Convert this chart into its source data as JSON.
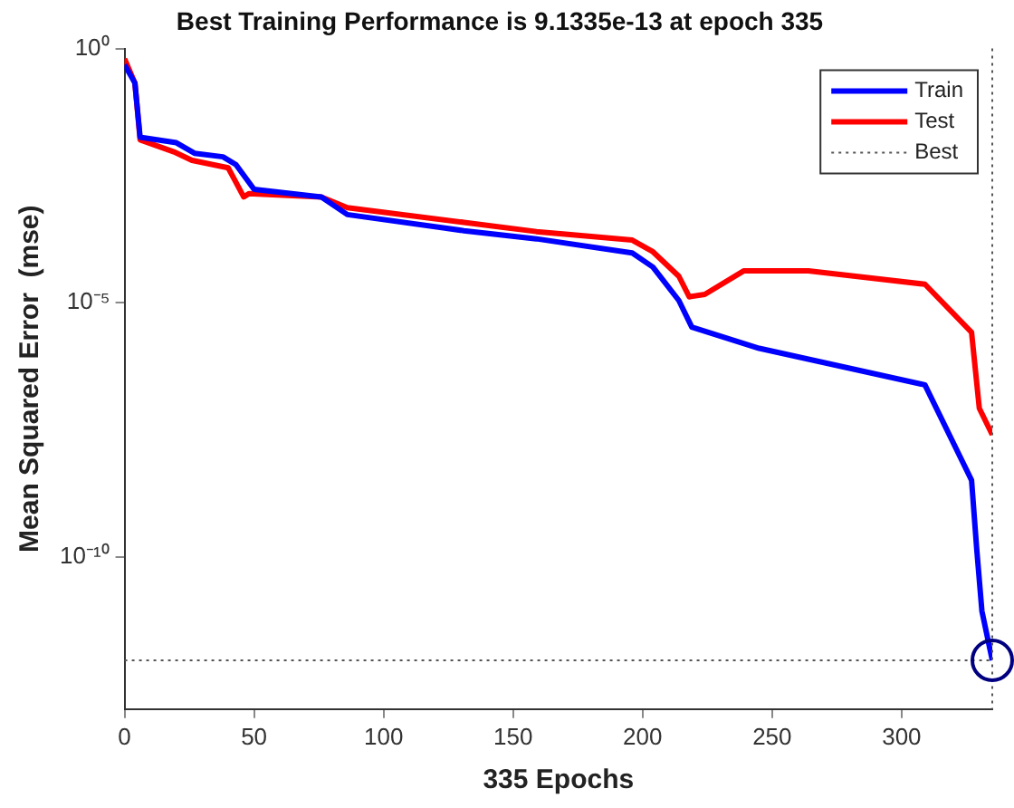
{
  "chart_data": {
    "type": "line",
    "title": "Best Training Performance is 9.1335e-13 at epoch 335",
    "xlabel": "335 Epochs",
    "ylabel": "Mean Squared Error  (mse)",
    "log": "y",
    "grid": false,
    "legend": "top right",
    "marker": "none",
    "line_style": "solid",
    "xlim": [
      0,
      335
    ],
    "xticks": [
      0,
      50,
      100,
      150,
      200,
      250,
      300
    ],
    "ylim": [
      1e-13,
      1
    ],
    "yticks": [
      {
        "value": 1,
        "label": "10⁰"
      },
      {
        "value": 1e-05,
        "label": "10⁻⁵"
      },
      {
        "value": 1e-10,
        "label": "10⁻¹⁰"
      }
    ],
    "series": [
      {
        "name": "Train",
        "color": "#0000ff",
        "x": [
          0,
          4,
          6,
          20,
          27,
          38,
          43,
          50,
          76,
          86,
          131,
          159,
          196,
          204,
          214,
          219,
          245,
          309,
          327,
          329,
          331,
          335
        ],
        "values": [
          0.48,
          0.21,
          0.018,
          0.014,
          0.0087,
          0.0074,
          0.0052,
          0.0017,
          0.0012,
          0.00054,
          0.00026,
          0.00018,
          9.5e-05,
          5e-05,
          1.1e-05,
          3.3e-06,
          1.26e-06,
          2.4e-07,
          3.2e-09,
          1.4e-10,
          8.5e-12,
          9.1335e-13
        ]
      },
      {
        "name": "Test",
        "color": "#ff0000",
        "x": [
          0,
          4,
          6,
          19,
          26,
          40,
          46,
          48,
          76,
          86,
          131,
          159,
          196,
          204,
          214,
          218,
          224,
          239,
          264,
          309,
          327,
          330,
          335
        ],
        "values": [
          0.63,
          0.21,
          0.016,
          0.0093,
          0.0063,
          0.0045,
          0.0012,
          0.0014,
          0.0012,
          0.00074,
          0.00038,
          0.00025,
          0.00017,
          0.0001,
          3.3e-05,
          1.3e-05,
          1.45e-05,
          4.2e-05,
          4.2e-05,
          2.3e-05,
          2.6e-06,
          8.3e-08,
          2.5e-08
        ]
      }
    ],
    "ref_lines": [
      {
        "axis": "y",
        "value": 9.1335e-13,
        "label": "Best",
        "color": "#555555",
        "line_style": "dotted"
      },
      {
        "axis": "x",
        "value": 335,
        "color": "#555555",
        "line_style": "dotted"
      }
    ]
  }
}
